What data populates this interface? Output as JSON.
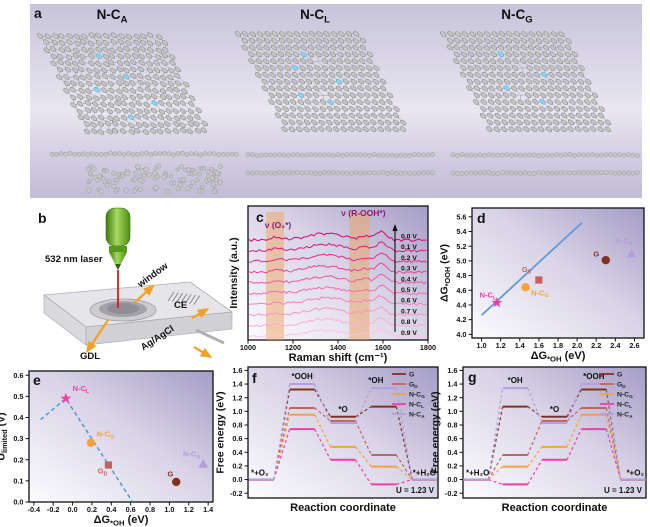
{
  "panels": {
    "a": {
      "letter": "a",
      "molecules": [
        {
          "pre": "N-C",
          "sub": "A",
          "style": "disordered",
          "nitrogen_sites": [
            [
              3,
              6
            ],
            [
              6,
              9
            ],
            [
              8,
              4
            ],
            [
              10,
              11
            ],
            [
              12,
              7
            ]
          ],
          "vacancy_sites": []
        },
        {
          "pre": "N-C",
          "sub": "L",
          "style": "ordered",
          "nitrogen_sites": [
            [
              3,
              7
            ],
            [
              5,
              5
            ],
            [
              7,
              10
            ],
            [
              9,
              4
            ],
            [
              10,
              8
            ]
          ],
          "vacancy_sites": [
            [
              4,
              9
            ],
            [
              9,
              7
            ]
          ]
        },
        {
          "pre": "N-C",
          "sub": "G",
          "style": "ordered",
          "nitrogen_sites": [
            [
              3,
              6
            ],
            [
              6,
              11
            ],
            [
              8,
              5
            ],
            [
              10,
              9
            ]
          ],
          "vacancy_sites": [
            [
              5,
              8
            ],
            [
              9,
              6
            ]
          ]
        }
      ]
    },
    "b": {
      "letter": "b",
      "labels": {
        "laser": "532 nm laser",
        "window": "window",
        "counter": "CE",
        "reference": "Ag/AgCl",
        "gdl": "GDL"
      }
    },
    "c": {
      "letter": "c"
    },
    "d": {
      "letter": "d"
    },
    "e": {
      "letter": "e"
    },
    "f": {
      "letter": "f"
    },
    "g": {
      "letter": "g"
    }
  },
  "colors": {
    "carbon": "#c4c4c4",
    "carbon_stroke": "#828282",
    "nitrogen": "#8ed2ee",
    "nitrogen_stroke": "#58a8cc",
    "frame": "#111111",
    "plot_bg_dark": "#a59dc6",
    "plot_bg_mid": "#d8d3e6",
    "plot_bg_light": "#fcfbfe",
    "band": "#eda45e",
    "band_label": "#8d1a78",
    "arrow_orange": "#f2a124",
    "laser_green": "#6fb32a",
    "laser_beam_red": "#cc2020"
  },
  "chart_data": [
    {
      "panel": "c",
      "type": "line",
      "xlabel": {
        "pre": "Raman shift (cm⁻¹)"
      },
      "ylabel": {
        "pre": "Intensity (a.u.)"
      },
      "xlim": [
        1000,
        1800
      ],
      "xticks": [
        "1000",
        "1200",
        "1400",
        "1600",
        "1800"
      ],
      "bands": [
        {
          "label": "ν (O₂*)",
          "x0": 1080,
          "x1": 1160
        },
        {
          "label": "ν (R-OOH*)",
          "x0": 1450,
          "x1": 1540
        }
      ],
      "series_labels": [
        "0.0 V",
        "0.1 V",
        "0.2 V",
        "0.3 V",
        "0.4 V",
        "0.5 V",
        "0.6 V",
        "0.7 V",
        "0.8 V",
        "0.9 V"
      ],
      "color_dark": "#e0006e",
      "color_light": "#ffc2de",
      "direction_arrow": "up"
    },
    {
      "panel": "d",
      "type": "scatter",
      "xlabel": {
        "pre": "ΔG",
        "sub": "*OH",
        "post": " (eV)"
      },
      "ylabel": {
        "pre": "ΔG",
        "sub": "*OOH",
        "post": " (eV)"
      },
      "xlim": [
        0.9,
        2.7
      ],
      "ylim": [
        3.95,
        5.72
      ],
      "xticks": [
        "1.0",
        "1.2",
        "1.4",
        "1.6",
        "1.8",
        "2.0",
        "2.2",
        "2.4",
        "2.6"
      ],
      "yticks": [
        "4.0",
        "4.2",
        "4.4",
        "4.6",
        "4.8",
        "5.0",
        "5.2",
        "5.4",
        "5.6"
      ],
      "fit_line": {
        "x1": 1.0,
        "y1": 4.26,
        "x2": 2.05,
        "y2": 5.52,
        "color": "#5e97d8"
      },
      "points": [
        {
          "label": {
            "pre": "N-C",
            "sub": "L"
          },
          "x": 1.16,
          "y": 4.43,
          "marker": "star",
          "color": "#ee3fa8",
          "lx": 0.98,
          "ly": 4.5
        },
        {
          "label": {
            "pre": "N-C",
            "sub": "G"
          },
          "x": 1.46,
          "y": 4.64,
          "marker": "circle",
          "color": "#f6a13b",
          "lx": 1.52,
          "ly": 4.53
        },
        {
          "label": {
            "pre": "G",
            "sub": "D"
          },
          "x": 1.6,
          "y": 4.74,
          "marker": "square",
          "color": "#c4625f",
          "lx": 1.42,
          "ly": 4.85
        },
        {
          "label": {
            "pre": "G",
            "sub": ""
          },
          "x": 2.3,
          "y": 5.01,
          "marker": "circle",
          "color": "#83301d",
          "lx": 2.17,
          "ly": 5.06
        },
        {
          "label": {
            "pre": "N-C",
            "sub": "A"
          },
          "x": 2.57,
          "y": 5.1,
          "marker": "triangle",
          "color": "#b39fdc",
          "lx": 2.4,
          "ly": 5.24
        }
      ]
    },
    {
      "panel": "e",
      "type": "scatter",
      "xlabel": {
        "pre": "ΔG",
        "sub": "*OH",
        "post": " (eV)"
      },
      "ylabel": {
        "pre": "U",
        "sub": "limited",
        "post": " (V)"
      },
      "xlim": [
        -0.45,
        1.45
      ],
      "ylim": [
        0,
        0.62
      ],
      "xticks": [
        "-0.4",
        "-0.2",
        "0.0",
        "0.2",
        "0.4",
        "0.6",
        "0.8",
        "1.0",
        "1.2",
        "1.4"
      ],
      "yticks": [
        "0.0",
        "0.1",
        "0.2",
        "0.3",
        "0.4",
        "0.5",
        "0.6"
      ],
      "volcano": {
        "pts": [
          [
            -0.33,
            0.39
          ],
          [
            -0.07,
            0.49
          ],
          [
            0.62,
            0.0
          ]
        ],
        "color": "#4f94d8"
      },
      "points": [
        {
          "label": {
            "pre": "N-C",
            "sub": "L"
          },
          "x": -0.07,
          "y": 0.49,
          "marker": "star",
          "color": "#ee3fa8",
          "lx": 0.0,
          "ly": 0.525
        },
        {
          "label": {
            "pre": "N-C",
            "sub": "G"
          },
          "x": 0.19,
          "y": 0.28,
          "marker": "circle",
          "color": "#f6a13b",
          "lx": 0.25,
          "ly": 0.31
        },
        {
          "label": {
            "pre": "G",
            "sub": "D"
          },
          "x": 0.37,
          "y": 0.175,
          "marker": "square",
          "color": "#c4625f",
          "lx": 0.26,
          "ly": 0.135
        },
        {
          "label": {
            "pre": "G",
            "sub": ""
          },
          "x": 1.07,
          "y": 0.095,
          "marker": "circle",
          "color": "#83301d",
          "lx": 0.98,
          "ly": 0.12
        },
        {
          "label": {
            "pre": "N-C",
            "sub": "A"
          },
          "x": 1.35,
          "y": 0.18,
          "marker": "triangle",
          "color": "#b39fdc",
          "lx": 1.14,
          "ly": 0.215
        }
      ]
    },
    {
      "panel": "f",
      "type": "step",
      "xlabel": {
        "pre": "Reaction coordinate"
      },
      "ylabel": {
        "pre": "Free energy (eV)"
      },
      "ylim": [
        -0.27,
        1.65
      ],
      "yticks": [
        "-0.2",
        "0.0",
        "0.2",
        "0.4",
        "0.6",
        "0.8",
        "1.0",
        "1.2",
        "1.4",
        "1.6"
      ],
      "states": [
        "*+O₂",
        "*OOH",
        "*O",
        "*OH",
        "*+H₂O"
      ],
      "note": "U = 1.23 V",
      "series": [
        {
          "label": {
            "pre": "G",
            "sub": ""
          },
          "color": "#83301d",
          "values": [
            0,
            1.32,
            0.92,
            1.07,
            0
          ]
        },
        {
          "label": {
            "pre": "G",
            "sub": "D"
          },
          "color": "#c4625f",
          "values": [
            0,
            1.05,
            0.86,
            0.36,
            0
          ]
        },
        {
          "label": {
            "pre": "N-C",
            "sub": "G"
          },
          "color": "#f6a13b",
          "values": [
            0,
            0.95,
            0.48,
            0.19,
            0
          ]
        },
        {
          "label": {
            "pre": "N-C",
            "sub": "L"
          },
          "color": "#ee3fa8",
          "values": [
            0,
            0.74,
            0.29,
            -0.07,
            0
          ]
        },
        {
          "label": {
            "pre": "N-C",
            "sub": "A"
          },
          "color": "#b39fdc",
          "values": [
            0,
            1.4,
            0.83,
            1.34,
            0
          ]
        }
      ]
    },
    {
      "panel": "g",
      "type": "step",
      "xlabel": {
        "pre": "Reaction coordinate"
      },
      "ylabel": {
        "pre": "Free energy (eV)"
      },
      "ylim": [
        -0.27,
        1.65
      ],
      "yticks": [
        "-0.2",
        "0.0",
        "0.2",
        "0.4",
        "0.6",
        "0.8",
        "1.0",
        "1.2",
        "1.4",
        "1.6"
      ],
      "states": [
        "*+H₂O",
        "*OH",
        "*O",
        "*OOH",
        "*+O₂"
      ],
      "note": "U = 1.23 V",
      "series": [
        {
          "label": {
            "pre": "G",
            "sub": ""
          },
          "color": "#83301d",
          "values": [
            0,
            1.07,
            0.92,
            1.32,
            0
          ]
        },
        {
          "label": {
            "pre": "G",
            "sub": "D"
          },
          "color": "#c4625f",
          "values": [
            0,
            0.36,
            0.86,
            1.05,
            0
          ]
        },
        {
          "label": {
            "pre": "N-C",
            "sub": "G"
          },
          "color": "#f6a13b",
          "values": [
            0,
            0.19,
            0.48,
            0.95,
            0
          ]
        },
        {
          "label": {
            "pre": "N-C",
            "sub": "L"
          },
          "color": "#ee3fa8",
          "values": [
            0,
            -0.07,
            0.29,
            0.74,
            0
          ]
        },
        {
          "label": {
            "pre": "N-C",
            "sub": "A"
          },
          "color": "#b39fdc",
          "values": [
            0,
            1.34,
            0.83,
            1.4,
            0
          ]
        }
      ]
    }
  ]
}
